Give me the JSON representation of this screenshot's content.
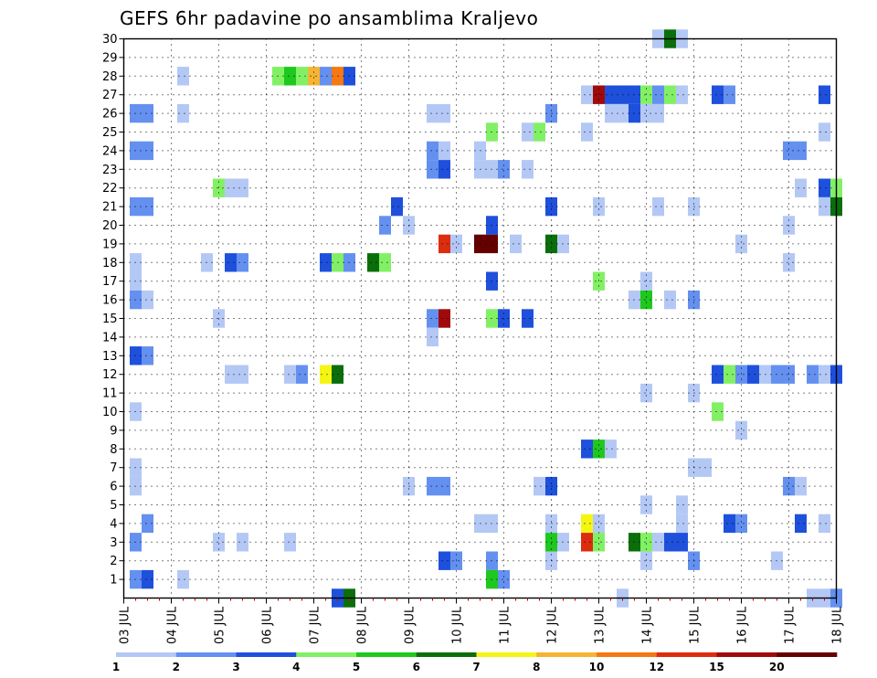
{
  "chart_data": {
    "type": "heatmap",
    "title": "GEFS 6hr padavine po ansamblima Kraljevo",
    "y_ticks": [
      1,
      2,
      3,
      4,
      5,
      6,
      7,
      8,
      9,
      10,
      11,
      12,
      13,
      14,
      15,
      16,
      17,
      18,
      19,
      20,
      21,
      22,
      23,
      24,
      25,
      26,
      27,
      28,
      29,
      30
    ],
    "x_ticks": [
      "03 JUL",
      "04 JUL",
      "05 JUL",
      "06 JUL",
      "07 JUL",
      "08 JUL",
      "09 JUL",
      "10 JUL",
      "11 JUL",
      "12 JUL",
      "13 JUL",
      "14 JUL",
      "15 JUL",
      "16 JUL",
      "17 JUL",
      "18 JUL"
    ],
    "ylim": [
      0,
      30
    ],
    "xlim": [
      0,
      60
    ],
    "x_unit": "6-hour steps after 03 JUL 00Z",
    "grid": true,
    "colorbar": {
      "labels": [
        "1",
        "2",
        "3",
        "4",
        "5",
        "6",
        "7",
        "8",
        "10",
        "12",
        "15",
        "20"
      ],
      "colors": [
        "#b4c8f5",
        "#6490f0",
        "#1e50dc",
        "#82f064",
        "#1ec81e",
        "#0a6e0a",
        "#f5f514",
        "#f5b432",
        "#f57814",
        "#dc2d0f",
        "#a00a0a",
        "#640000"
      ]
    },
    "cells": [
      [
        30,
        45,
        0
      ],
      [
        30,
        46,
        5
      ],
      [
        30,
        47,
        0
      ],
      [
        28,
        5,
        0
      ],
      [
        28,
        13,
        3
      ],
      [
        28,
        14,
        4
      ],
      [
        28,
        15,
        3
      ],
      [
        28,
        16,
        7
      ],
      [
        28,
        17,
        1
      ],
      [
        28,
        18,
        8
      ],
      [
        28,
        19,
        2
      ],
      [
        27,
        39,
        0
      ],
      [
        27,
        40,
        10
      ],
      [
        27,
        41,
        2
      ],
      [
        27,
        42,
        2
      ],
      [
        27,
        43,
        2
      ],
      [
        27,
        44,
        3
      ],
      [
        27,
        45,
        1
      ],
      [
        27,
        46,
        3
      ],
      [
        27,
        47,
        0
      ],
      [
        27,
        50,
        2
      ],
      [
        27,
        51,
        1
      ],
      [
        27,
        59,
        2
      ],
      [
        26,
        1,
        1
      ],
      [
        26,
        2,
        1
      ],
      [
        26,
        5,
        0
      ],
      [
        26,
        26,
        0
      ],
      [
        26,
        27,
        0
      ],
      [
        26,
        36,
        1
      ],
      [
        26,
        41,
        0
      ],
      [
        26,
        42,
        0
      ],
      [
        26,
        43,
        2
      ],
      [
        26,
        44,
        0
      ],
      [
        26,
        45,
        0
      ],
      [
        25,
        31,
        3
      ],
      [
        25,
        34,
        0
      ],
      [
        25,
        35,
        3
      ],
      [
        25,
        39,
        0
      ],
      [
        25,
        59,
        0
      ],
      [
        24,
        1,
        1
      ],
      [
        24,
        2,
        1
      ],
      [
        24,
        26,
        1
      ],
      [
        24,
        27,
        0
      ],
      [
        24,
        30,
        0
      ],
      [
        24,
        56,
        1
      ],
      [
        24,
        57,
        1
      ],
      [
        23,
        26,
        1
      ],
      [
        23,
        27,
        2
      ],
      [
        23,
        30,
        0
      ],
      [
        23,
        31,
        0
      ],
      [
        23,
        32,
        1
      ],
      [
        23,
        34,
        0
      ],
      [
        22,
        8,
        3
      ],
      [
        22,
        9,
        0
      ],
      [
        22,
        10,
        0
      ],
      [
        22,
        57,
        0
      ],
      [
        22,
        59,
        2
      ],
      [
        22,
        60,
        3
      ],
      [
        21,
        1,
        1
      ],
      [
        21,
        2,
        1
      ],
      [
        21,
        23,
        2
      ],
      [
        21,
        36,
        2
      ],
      [
        21,
        40,
        0
      ],
      [
        21,
        45,
        0
      ],
      [
        21,
        48,
        0
      ],
      [
        21,
        59,
        0
      ],
      [
        21,
        60,
        5
      ],
      [
        20,
        22,
        1
      ],
      [
        20,
        24,
        0
      ],
      [
        20,
        31,
        2
      ],
      [
        20,
        56,
        0
      ],
      [
        19,
        27,
        9
      ],
      [
        19,
        28,
        0
      ],
      [
        19,
        30,
        11
      ],
      [
        19,
        31,
        11
      ],
      [
        19,
        33,
        0
      ],
      [
        19,
        36,
        5
      ],
      [
        19,
        37,
        0
      ],
      [
        19,
        52,
        0
      ],
      [
        18,
        1,
        0
      ],
      [
        18,
        7,
        0
      ],
      [
        18,
        9,
        2
      ],
      [
        18,
        10,
        1
      ],
      [
        18,
        17,
        2
      ],
      [
        18,
        18,
        3
      ],
      [
        18,
        19,
        1
      ],
      [
        18,
        21,
        5
      ],
      [
        18,
        22,
        3
      ],
      [
        18,
        56,
        0
      ],
      [
        17,
        1,
        0
      ],
      [
        17,
        31,
        2
      ],
      [
        17,
        40,
        3
      ],
      [
        17,
        44,
        0
      ],
      [
        16,
        1,
        1
      ],
      [
        16,
        2,
        0
      ],
      [
        16,
        43,
        0
      ],
      [
        16,
        44,
        4
      ],
      [
        16,
        46,
        0
      ],
      [
        16,
        48,
        1
      ],
      [
        15,
        8,
        0
      ],
      [
        15,
        26,
        1
      ],
      [
        15,
        27,
        10
      ],
      [
        15,
        31,
        3
      ],
      [
        15,
        32,
        2
      ],
      [
        15,
        34,
        2
      ],
      [
        14,
        26,
        0
      ],
      [
        13,
        1,
        2
      ],
      [
        13,
        2,
        1
      ],
      [
        12,
        9,
        0
      ],
      [
        12,
        10,
        0
      ],
      [
        12,
        14,
        0
      ],
      [
        12,
        15,
        1
      ],
      [
        12,
        17,
        6
      ],
      [
        12,
        18,
        5
      ],
      [
        12,
        50,
        2
      ],
      [
        12,
        51,
        3
      ],
      [
        12,
        52,
        1
      ],
      [
        12,
        53,
        2
      ],
      [
        12,
        54,
        0
      ],
      [
        12,
        55,
        1
      ],
      [
        12,
        56,
        1
      ],
      [
        12,
        58,
        1
      ],
      [
        12,
        59,
        0
      ],
      [
        12,
        60,
        2
      ],
      [
        11,
        44,
        0
      ],
      [
        11,
        48,
        0
      ],
      [
        10,
        1,
        0
      ],
      [
        10,
        50,
        3
      ],
      [
        9,
        52,
        0
      ],
      [
        8,
        39,
        2
      ],
      [
        8,
        40,
        4
      ],
      [
        8,
        41,
        0
      ],
      [
        7,
        1,
        0
      ],
      [
        7,
        48,
        0
      ],
      [
        7,
        49,
        0
      ],
      [
        6,
        1,
        0
      ],
      [
        6,
        24,
        0
      ],
      [
        6,
        26,
        1
      ],
      [
        6,
        27,
        1
      ],
      [
        6,
        35,
        0
      ],
      [
        6,
        36,
        2
      ],
      [
        6,
        56,
        1
      ],
      [
        6,
        57,
        0
      ],
      [
        5,
        44,
        0
      ],
      [
        5,
        47,
        0
      ],
      [
        4,
        2,
        1
      ],
      [
        4,
        30,
        0
      ],
      [
        4,
        31,
        0
      ],
      [
        4,
        36,
        0
      ],
      [
        4,
        39,
        6
      ],
      [
        4,
        40,
        0
      ],
      [
        4,
        47,
        0
      ],
      [
        4,
        51,
        2
      ],
      [
        4,
        52,
        1
      ],
      [
        4,
        57,
        2
      ],
      [
        4,
        59,
        0
      ],
      [
        3,
        1,
        1
      ],
      [
        3,
        8,
        0
      ],
      [
        3,
        10,
        0
      ],
      [
        3,
        14,
        0
      ],
      [
        3,
        36,
        4
      ],
      [
        3,
        37,
        0
      ],
      [
        3,
        39,
        9
      ],
      [
        3,
        40,
        3
      ],
      [
        3,
        43,
        5
      ],
      [
        3,
        44,
        3
      ],
      [
        3,
        45,
        0
      ],
      [
        3,
        46,
        2
      ],
      [
        3,
        47,
        2
      ],
      [
        2,
        27,
        2
      ],
      [
        2,
        28,
        1
      ],
      [
        2,
        31,
        1
      ],
      [
        2,
        36,
        0
      ],
      [
        2,
        44,
        0
      ],
      [
        2,
        48,
        1
      ],
      [
        2,
        55,
        0
      ],
      [
        1,
        1,
        1
      ],
      [
        1,
        2,
        2
      ],
      [
        1,
        5,
        0
      ],
      [
        1,
        31,
        4
      ],
      [
        1,
        32,
        1
      ],
      [
        0,
        18,
        2
      ],
      [
        0,
        19,
        5
      ],
      [
        0,
        42,
        0
      ],
      [
        0,
        58,
        0
      ],
      [
        0,
        59,
        0
      ],
      [
        0,
        60,
        1
      ]
    ]
  }
}
